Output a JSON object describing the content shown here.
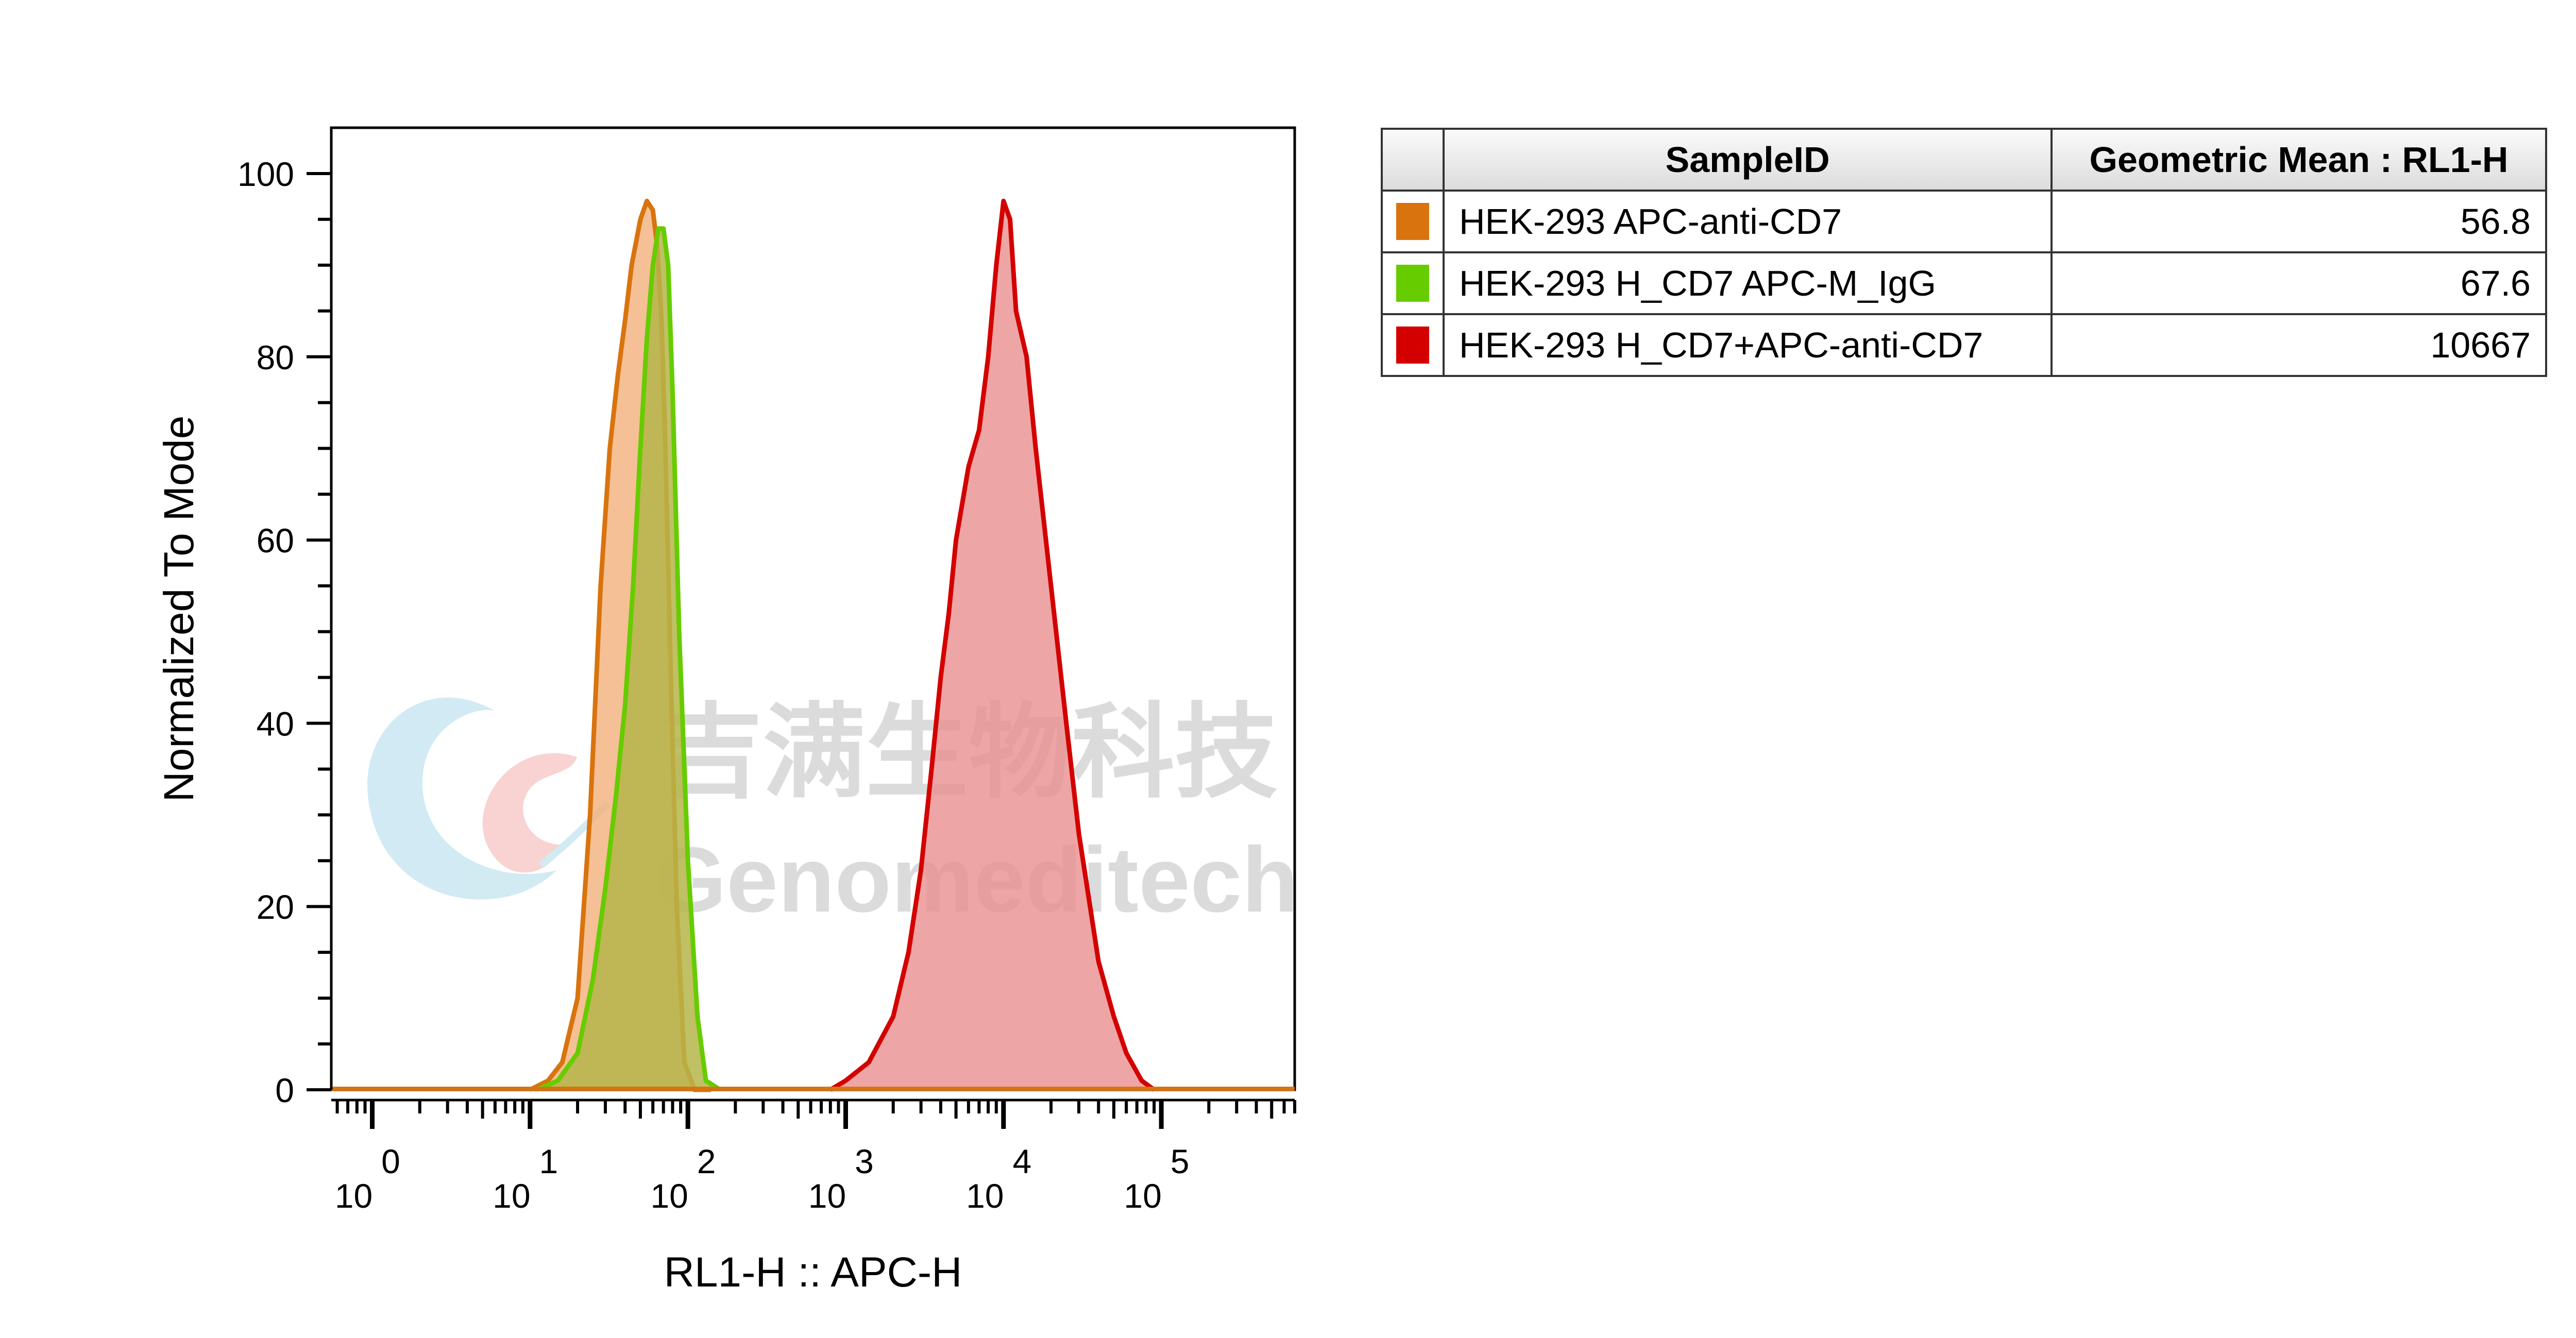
{
  "chart_data": {
    "type": "area",
    "xlabel": "RL1-H :: APC-H",
    "ylabel": "Normalized To Mode",
    "xscale": "log",
    "xlim": [
      0.55,
      700000
    ],
    "ylim": [
      0,
      105
    ],
    "yticks": [
      0,
      20,
      40,
      60,
      80,
      100
    ],
    "xticks": [
      {
        "value": 1,
        "base": "10",
        "exp": "0"
      },
      {
        "value": 10,
        "base": "10",
        "exp": "1"
      },
      {
        "value": 100,
        "base": "10",
        "exp": "2"
      },
      {
        "value": 1000,
        "base": "10",
        "exp": "3"
      },
      {
        "value": 10000,
        "base": "10",
        "exp": "4"
      },
      {
        "value": 100000,
        "base": "10",
        "exp": "5"
      }
    ],
    "grid": false,
    "legend_position": "right",
    "series": [
      {
        "name": "HEK-293 APC-anti-CD7",
        "color": "#d9730d",
        "fill": "#f3b07a",
        "x": [
          10,
          13,
          16,
          20,
          24,
          28,
          32,
          36,
          40,
          44,
          50,
          55,
          60,
          64,
          68,
          72,
          78,
          85,
          95,
          110,
          140
        ],
        "y": [
          0,
          1,
          3,
          10,
          30,
          55,
          70,
          78,
          84,
          90,
          95,
          97,
          96,
          92,
          84,
          70,
          45,
          20,
          3,
          0,
          0
        ]
      },
      {
        "name": "HEK-293 H_CD7 APC-M_IgG",
        "color": "#66cc00",
        "fill": "#b5b54a",
        "x": [
          11,
          15,
          20,
          25,
          30,
          35,
          40,
          45,
          50,
          55,
          60,
          65,
          70,
          75,
          80,
          88,
          100,
          115,
          130,
          160
        ],
        "y": [
          0,
          1,
          4,
          12,
          22,
          32,
          42,
          55,
          70,
          82,
          90,
          94,
          94,
          90,
          76,
          50,
          25,
          8,
          1,
          0
        ]
      },
      {
        "name": "HEK-293 H_CD7+APC-anti-CD7",
        "color": "#d40000",
        "fill": "#ea8e8e",
        "x": [
          800,
          1000,
          1400,
          2000,
          2500,
          3000,
          3500,
          4000,
          4500,
          5000,
          6000,
          7000,
          8000,
          9000,
          10000,
          11000,
          12000,
          14000,
          16000,
          20000,
          25000,
          30000,
          40000,
          50000,
          60000,
          75000,
          90000
        ],
        "y": [
          0,
          1,
          3,
          8,
          15,
          24,
          35,
          45,
          52,
          60,
          68,
          72,
          80,
          90,
          97,
          95,
          85,
          80,
          70,
          55,
          40,
          28,
          14,
          8,
          4,
          1,
          0
        ]
      }
    ]
  },
  "legend": {
    "header_sample": "SampleID",
    "header_gm": "Geometric Mean : RL1-H",
    "rows": [
      {
        "name": "HEK-293 APC-anti-CD7",
        "value": "56.8",
        "color": "#d9730d"
      },
      {
        "name": "HEK-293 H_CD7 APC-M_IgG",
        "value": "67.6",
        "color": "#66cc00"
      },
      {
        "name": "HEK-293 H_CD7+APC-anti-CD7",
        "value": "10667",
        "color": "#d40000"
      }
    ]
  },
  "watermark": {
    "chinese": "吉满生物科技",
    "english": "Genomeditech"
  }
}
